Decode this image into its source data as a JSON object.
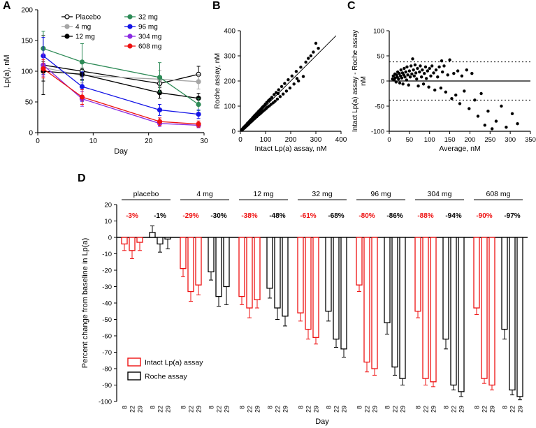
{
  "figure": {
    "panel_labels": [
      "A",
      "B",
      "C",
      "D"
    ]
  },
  "chart_data": [
    {
      "id": "panelA",
      "type": "line",
      "xlabel": "Day",
      "ylabel": "Lp(a), nM",
      "xlim": [
        0,
        30
      ],
      "ylim": [
        0,
        200
      ],
      "xticks": [
        0,
        10,
        20,
        30
      ],
      "yticks": [
        0,
        50,
        100,
        150,
        200
      ],
      "x": [
        1,
        8,
        22,
        29
      ],
      "series": [
        {
          "name": "Placebo",
          "color": "#000000",
          "open": true,
          "values": [
            110,
            100,
            80,
            95
          ],
          "errors": [
            48,
            13,
            11,
            13
          ]
        },
        {
          "name": "4 mg",
          "color": "#a6a6a6",
          "open": false,
          "values": [
            106,
            93,
            87,
            83
          ],
          "errors": [
            22,
            12,
            14,
            12
          ]
        },
        {
          "name": "12 mg",
          "color": "#000000",
          "open": false,
          "values": [
            100,
            95,
            65,
            56
          ],
          "errors": [
            16,
            10,
            9,
            8
          ]
        },
        {
          "name": "32 mg",
          "color": "#2e8b57",
          "open": false,
          "values": [
            137,
            115,
            90,
            46
          ],
          "errors": [
            28,
            30,
            24,
            10
          ]
        },
        {
          "name": "96 mg",
          "color": "#1414e6",
          "open": false,
          "values": [
            125,
            75,
            37,
            30
          ],
          "errors": [
            30,
            24,
            9,
            7
          ]
        },
        {
          "name": "304 mg",
          "color": "#8a2be2",
          "open": false,
          "values": [
            110,
            55,
            15,
            12
          ],
          "errors": [
            18,
            12,
            5,
            4
          ]
        },
        {
          "name": "608 mg",
          "color": "#ee1111",
          "open": false,
          "values": [
            104,
            58,
            18,
            14
          ],
          "errors": [
            15,
            12,
            6,
            5
          ]
        }
      ]
    },
    {
      "id": "panelB",
      "type": "scatter",
      "xlabel": "Intact Lp(a) assay, nM",
      "ylabel": "Roche assay, nM",
      "xlim": [
        0,
        400
      ],
      "ylim": [
        0,
        400
      ],
      "xticks": [
        0,
        100,
        200,
        300,
        400
      ],
      "yticks": [
        0,
        100,
        200,
        300,
        400
      ],
      "identity_line": [
        [
          0,
          0
        ],
        [
          380,
          380
        ]
      ],
      "points": [
        [
          4,
          5
        ],
        [
          6,
          4
        ],
        [
          8,
          9
        ],
        [
          10,
          8
        ],
        [
          11,
          13
        ],
        [
          13,
          11
        ],
        [
          15,
          17
        ],
        [
          16,
          13
        ],
        [
          18,
          20
        ],
        [
          20,
          17
        ],
        [
          21,
          23
        ],
        [
          23,
          20
        ],
        [
          25,
          27
        ],
        [
          26,
          22
        ],
        [
          28,
          31
        ],
        [
          30,
          26
        ],
        [
          31,
          34
        ],
        [
          33,
          29
        ],
        [
          35,
          38
        ],
        [
          36,
          32
        ],
        [
          38,
          42
        ],
        [
          40,
          36
        ],
        [
          42,
          46
        ],
        [
          44,
          39
        ],
        [
          46,
          50
        ],
        [
          48,
          43
        ],
        [
          50,
          55
        ],
        [
          52,
          47
        ],
        [
          54,
          59
        ],
        [
          56,
          50
        ],
        [
          58,
          64
        ],
        [
          60,
          54
        ],
        [
          63,
          69
        ],
        [
          65,
          58
        ],
        [
          68,
          74
        ],
        [
          70,
          63
        ],
        [
          73,
          80
        ],
        [
          75,
          67
        ],
        [
          78,
          85
        ],
        [
          80,
          71
        ],
        [
          83,
          90
        ],
        [
          85,
          76
        ],
        [
          88,
          96
        ],
        [
          90,
          80
        ],
        [
          93,
          101
        ],
        [
          96,
          85
        ],
        [
          99,
          108
        ],
        [
          102,
          90
        ],
        [
          105,
          115
        ],
        [
          108,
          96
        ],
        [
          112,
          122
        ],
        [
          115,
          101
        ],
        [
          118,
          128
        ],
        [
          122,
          107
        ],
        [
          125,
          135
        ],
        [
          130,
          113
        ],
        [
          134,
          146
        ],
        [
          138,
          120
        ],
        [
          142,
          154
        ],
        [
          147,
          128
        ],
        [
          152,
          165
        ],
        [
          158,
          138
        ],
        [
          164,
          178
        ],
        [
          170,
          148
        ],
        [
          176,
          190
        ],
        [
          183,
          160
        ],
        [
          190,
          205
        ],
        [
          197,
          172
        ],
        [
          205,
          220
        ],
        [
          213,
          188
        ],
        [
          222,
          238
        ],
        [
          231,
          200
        ],
        [
          240,
          255
        ],
        [
          250,
          218
        ],
        [
          260,
          275
        ],
        [
          270,
          290
        ],
        [
          280,
          300
        ],
        [
          290,
          315
        ],
        [
          300,
          350
        ],
        [
          310,
          330
        ],
        [
          225,
          210
        ],
        [
          150,
          150
        ],
        [
          95,
          100
        ],
        [
          55,
          60
        ],
        [
          30,
          33
        ],
        [
          18,
          15
        ]
      ]
    },
    {
      "id": "panelC",
      "type": "scatter",
      "xlabel": "Average, nM",
      "ylabel": "Intact Lp(a) assay - Roche assay",
      "ylabel2": "nM",
      "xlim": [
        0,
        350
      ],
      "ylim": [
        -100,
        100
      ],
      "xticks": [
        0,
        50,
        100,
        150,
        200,
        250,
        300,
        350
      ],
      "yticks": [
        -100,
        -50,
        0,
        50,
        100
      ],
      "hlines": [
        {
          "y": 38,
          "style": "dotted"
        },
        {
          "y": 0,
          "style": "solid"
        },
        {
          "y": -38,
          "style": "dotted"
        }
      ],
      "points": [
        [
          8,
          4
        ],
        [
          10,
          10
        ],
        [
          12,
          2
        ],
        [
          14,
          14
        ],
        [
          15,
          6
        ],
        [
          17,
          -2
        ],
        [
          18,
          12
        ],
        [
          20,
          8
        ],
        [
          21,
          18
        ],
        [
          23,
          4
        ],
        [
          25,
          15
        ],
        [
          26,
          -4
        ],
        [
          28,
          10
        ],
        [
          29,
          22
        ],
        [
          31,
          6
        ],
        [
          33,
          16
        ],
        [
          34,
          -6
        ],
        [
          36,
          12
        ],
        [
          37,
          25
        ],
        [
          39,
          8
        ],
        [
          41,
          18
        ],
        [
          43,
          2
        ],
        [
          44,
          28
        ],
        [
          46,
          12
        ],
        [
          48,
          -8
        ],
        [
          50,
          20
        ],
        [
          52,
          8
        ],
        [
          54,
          30
        ],
        [
          56,
          14
        ],
        [
          58,
          44
        ],
        [
          60,
          22
        ],
        [
          62,
          10
        ],
        [
          64,
          32
        ],
        [
          66,
          16
        ],
        [
          68,
          4
        ],
        [
          70,
          25
        ],
        [
          72,
          -10
        ],
        [
          75,
          18
        ],
        [
          77,
          30
        ],
        [
          80,
          8
        ],
        [
          82,
          22
        ],
        [
          85,
          -6
        ],
        [
          87,
          15
        ],
        [
          90,
          28
        ],
        [
          92,
          5
        ],
        [
          95,
          20
        ],
        [
          98,
          -12
        ],
        [
          100,
          25
        ],
        [
          103,
          10
        ],
        [
          106,
          30
        ],
        [
          110,
          16
        ],
        [
          113,
          -18
        ],
        [
          116,
          22
        ],
        [
          120,
          8
        ],
        [
          124,
          28
        ],
        [
          128,
          -14
        ],
        [
          130,
          40
        ],
        [
          132,
          18
        ],
        [
          136,
          30
        ],
        [
          140,
          -22
        ],
        [
          145,
          12
        ],
        [
          150,
          42
        ],
        [
          155,
          -35
        ],
        [
          160,
          15
        ],
        [
          165,
          -28
        ],
        [
          170,
          20
        ],
        [
          175,
          -45
        ],
        [
          180,
          10
        ],
        [
          186,
          -20
        ],
        [
          192,
          22
        ],
        [
          198,
          -55
        ],
        [
          205,
          15
        ],
        [
          212,
          -38
        ],
        [
          220,
          -70
        ],
        [
          228,
          -25
        ],
        [
          237,
          -88
        ],
        [
          245,
          -60
        ],
        [
          255,
          -95
        ],
        [
          265,
          -80
        ],
        [
          278,
          -50
        ],
        [
          290,
          -92
        ],
        [
          305,
          -65
        ],
        [
          318,
          -85
        ]
      ]
    },
    {
      "id": "panelD",
      "type": "bar",
      "xlabel": "Day",
      "ylabel": "Percent change from baseline in Lp(a)",
      "ylim": [
        -100,
        20
      ],
      "ytick_step": 10,
      "annotation_y": 12,
      "days": [
        "8",
        "22",
        "29"
      ],
      "assays": [
        {
          "name": "Intact Lp(a) assay",
          "color": "#ee1111"
        },
        {
          "name": "Roche assay",
          "color": "#000000"
        }
      ],
      "groups": [
        {
          "label": "placebo",
          "annotations": [
            "-3%",
            "-1%"
          ],
          "series": [
            {
              "values": [
                -4,
                -8,
                -3
              ],
              "errors": [
                4,
                5,
                5
              ]
            },
            {
              "values": [
                3,
                -4,
                -1
              ],
              "errors": [
                4,
                5,
                6
              ]
            }
          ]
        },
        {
          "label": "4 mg",
          "annotations": [
            "-29%",
            "-30%"
          ],
          "series": [
            {
              "values": [
                -19,
                -33,
                -29
              ],
              "errors": [
                5,
                6,
                6
              ]
            },
            {
              "values": [
                -21,
                -36,
                -30
              ],
              "errors": [
                5,
                6,
                11
              ]
            }
          ]
        },
        {
          "label": "12 mg",
          "annotations": [
            "-38%",
            "-48%"
          ],
          "series": [
            {
              "values": [
                -36,
                -43,
                -38
              ],
              "errors": [
                5,
                6,
                5
              ]
            },
            {
              "values": [
                -31,
                -43,
                -48
              ],
              "errors": [
                6,
                7,
                6
              ]
            }
          ]
        },
        {
          "label": "32 mg",
          "annotations": [
            "-61%",
            "-68%"
          ],
          "series": [
            {
              "values": [
                -46,
                -56,
                -61
              ],
              "errors": [
                5,
                6,
                4
              ]
            },
            {
              "values": [
                -45,
                -62,
                -68
              ],
              "errors": [
                6,
                5,
                5
              ]
            }
          ]
        },
        {
          "label": "96 mg",
          "annotations": [
            "-80%",
            "-86%"
          ],
          "series": [
            {
              "values": [
                -29,
                -76,
                -80
              ],
              "errors": [
                4,
                6,
                4
              ]
            },
            {
              "values": [
                -52,
                -79,
                -86
              ],
              "errors": [
                7,
                5,
                4
              ]
            }
          ]
        },
        {
          "label": "304 mg",
          "annotations": [
            "-88%",
            "-94%"
          ],
          "series": [
            {
              "values": [
                -45,
                -86,
                -88
              ],
              "errors": [
                4,
                4,
                3
              ]
            },
            {
              "values": [
                -62,
                -90,
                -94
              ],
              "errors": [
                6,
                3,
                3
              ]
            }
          ]
        },
        {
          "label": "608 mg",
          "annotations": [
            "-90%",
            "-97%"
          ],
          "series": [
            {
              "values": [
                -43,
                -86,
                -90
              ],
              "errors": [
                4,
                3,
                3
              ]
            },
            {
              "values": [
                -56,
                -93,
                -97
              ],
              "errors": [
                6,
                3,
                2
              ]
            }
          ]
        }
      ]
    }
  ]
}
